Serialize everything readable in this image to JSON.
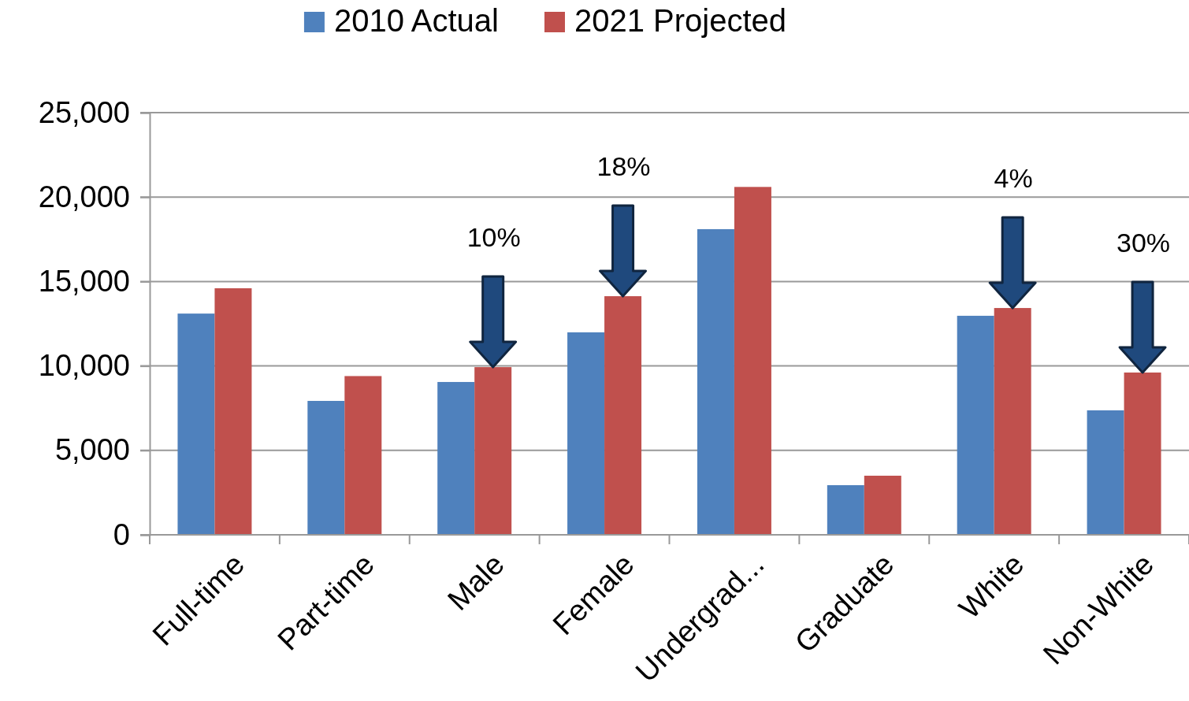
{
  "chart_data": {
    "type": "bar",
    "categories": [
      "Full-time",
      "Part-time",
      "Male",
      "Female",
      "Undergrad...",
      "Graduate",
      "White",
      "Non-White"
    ],
    "series": [
      {
        "name": "2010 Actual",
        "color": "#4f81bd",
        "values": [
          13100,
          7930,
          9050,
          11990,
          18100,
          2940,
          12970,
          7370
        ]
      },
      {
        "name": "2021 Projected",
        "color": "#c0504d",
        "values": [
          14600,
          9400,
          9930,
          14130,
          20600,
          3500,
          13430,
          9610
        ]
      }
    ],
    "ylim": [
      0,
      25000
    ],
    "yticks": [
      {
        "value": 0,
        "label": "0"
      },
      {
        "value": 5000,
        "label": "5,000"
      },
      {
        "value": 10000,
        "label": "10,000"
      },
      {
        "value": 15000,
        "label": "15,000"
      },
      {
        "value": 20000,
        "label": "20,000"
      },
      {
        "value": 25000,
        "label": "25,000"
      }
    ],
    "grid": "y",
    "legend": "top",
    "annotations": [
      "10%",
      "18%",
      "4%",
      "30%"
    ]
  }
}
